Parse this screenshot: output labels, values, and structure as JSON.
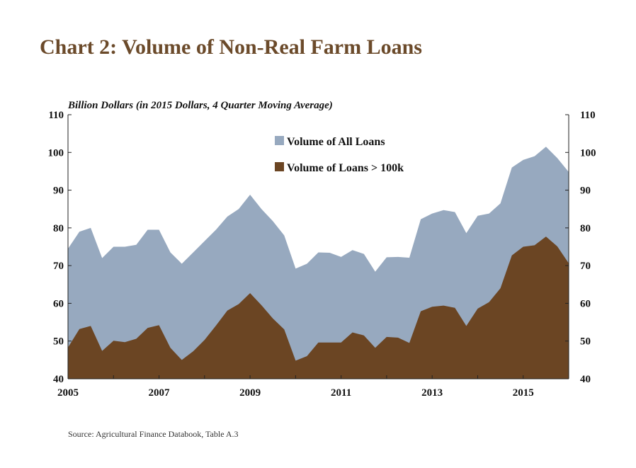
{
  "title": "Chart 2: Volume of Non-Real Farm Loans",
  "source": "Source: Agricultural Finance Databook, Table A.3",
  "colors": {
    "title": "#6b4a2a",
    "all_loans": "#97a9bf",
    "loans_gt_100k": "#6b4523"
  },
  "chart_data": {
    "type": "area",
    "unit_label": "Billion Dollars (in 2015 Dollars, 4 Quarter Moving Average)",
    "x_start": 2005.0,
    "x_step": 0.25,
    "xlim": [
      2005,
      2016
    ],
    "x_ticks": [
      "2005",
      "2007",
      "2009",
      "2011",
      "2013",
      "2015"
    ],
    "ylim": [
      40,
      110
    ],
    "y_ticks": [
      40,
      50,
      60,
      70,
      80,
      90,
      100,
      110
    ],
    "secondary_y_axis": true,
    "grid": false,
    "legend_position": "top-center",
    "series": [
      {
        "name": "Volume of All Loans",
        "color": "#97a9bf",
        "values": [
          74.5,
          79,
          80,
          72,
          75,
          75,
          75.5,
          79.5,
          79.5,
          73.5,
          70.5,
          73.5,
          76.5,
          79.5,
          83,
          85,
          88.8,
          85,
          81.8,
          78,
          69.2,
          70.5,
          73.5,
          73.4,
          72.3,
          74.1,
          73.1,
          68.4,
          72.2,
          72.3,
          72.1,
          82.3,
          83.8,
          84.7,
          84.2,
          78.6,
          83.2,
          83.8,
          86.5,
          96,
          98,
          99,
          101.5,
          98.5,
          94.8
        ]
      },
      {
        "name": "Volume of Loans > 100k",
        "color": "#6b4523",
        "values": [
          48.3,
          53.2,
          54.0,
          47.4,
          50.1,
          49.7,
          50.6,
          53.5,
          54.2,
          48.2,
          45.0,
          47.3,
          50.3,
          54.1,
          58.1,
          59.8,
          62.7,
          59.5,
          56.0,
          53.1,
          44.8,
          46.0,
          49.6,
          49.6,
          49.6,
          52.3,
          51.5,
          48.2,
          51.1,
          50.9,
          49.5,
          57.9,
          59.1,
          59.4,
          58.8,
          54.0,
          58.6,
          60.3,
          64.0,
          72.7,
          75.0,
          75.4,
          77.7,
          75.1,
          70.6
        ]
      }
    ]
  }
}
